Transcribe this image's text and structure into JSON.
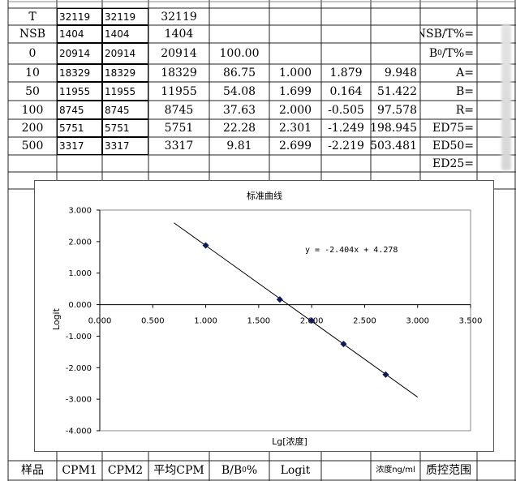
{
  "table": {
    "rows": [
      {
        "label": "T",
        "cpm1": "32119",
        "cpm2": "32119",
        "avg": "32119",
        "bb0": "",
        "lg": "",
        "logit": "",
        "conc": ""
      },
      {
        "label": "NSB",
        "cpm1": "1404",
        "cpm2": "1404",
        "avg": "1404",
        "bb0": "",
        "lg": "",
        "logit": "",
        "conc": ""
      },
      {
        "label": "0",
        "cpm1": "20914",
        "cpm2": "20914",
        "avg": "20914",
        "bb0": "100.00",
        "lg": "",
        "logit": "",
        "conc": ""
      },
      {
        "label": "10",
        "cpm1": "18329",
        "cpm2": "18329",
        "avg": "18329",
        "bb0": "86.75",
        "lg": "1.000",
        "logit": "1.879",
        "conc": "9.948"
      },
      {
        "label": "50",
        "cpm1": "11955",
        "cpm2": "11955",
        "avg": "11955",
        "bb0": "54.08",
        "lg": "1.699",
        "logit": "0.164",
        "conc": "51.422"
      },
      {
        "label": "100",
        "cpm1": "8745",
        "cpm2": "8745",
        "avg": "8745",
        "bb0": "37.63",
        "lg": "2.000",
        "logit": "-0.505",
        "conc": "97.578"
      },
      {
        "label": "200",
        "cpm1": "5751",
        "cpm2": "5751",
        "avg": "5751",
        "bb0": "22.28",
        "lg": "2.301",
        "logit": "-1.249",
        "conc": "198.945"
      },
      {
        "label": "500",
        "cpm1": "3317",
        "cpm2": "3317",
        "avg": "3317",
        "bb0": "9.81",
        "lg": "2.699",
        "logit": "-2.219",
        "conc": "503.481"
      }
    ],
    "side_labels": [
      "NSB/T%=",
      "B0/T%=",
      "A=",
      "B=",
      "R=",
      "ED75=",
      "ED50=",
      "ED25="
    ],
    "footer": {
      "sample": "样品",
      "cpm1": "CPM1",
      "cpm2": "CPM2",
      "avg": "平均CPM",
      "bb0": "B/B0%",
      "logit": "Logit",
      "conc": "浓度ng/ml",
      "qc": "质控范围"
    }
  },
  "chart_data": {
    "type": "scatter",
    "title": "标准曲线",
    "xlabel": "Lg[浓度]",
    "ylabel": "Logit",
    "xlim": [
      0,
      3.5
    ],
    "ylim": [
      -4,
      3
    ],
    "xticks": [
      "0.000",
      "0.500",
      "1.000",
      "1.500",
      "2.000",
      "2.500",
      "3.000",
      "3.500"
    ],
    "yticks": [
      "3.000",
      "2.000",
      "1.000",
      "0.000",
      "-1.000",
      "-2.000",
      "-3.000",
      "-4.000"
    ],
    "points": [
      {
        "x": 1.0,
        "y": 1.879
      },
      {
        "x": 1.699,
        "y": 0.164
      },
      {
        "x": 2.0,
        "y": -0.505
      },
      {
        "x": 2.301,
        "y": -1.249
      },
      {
        "x": 2.699,
        "y": -2.219
      }
    ],
    "trendline": {
      "slope": -2.404,
      "intercept": 4.278,
      "x_range": [
        0.7,
        3.0
      ]
    },
    "equation": "y = -2.404x + 4.278",
    "grid": false,
    "legend": "none",
    "marker_color": "#0a1a5c"
  }
}
